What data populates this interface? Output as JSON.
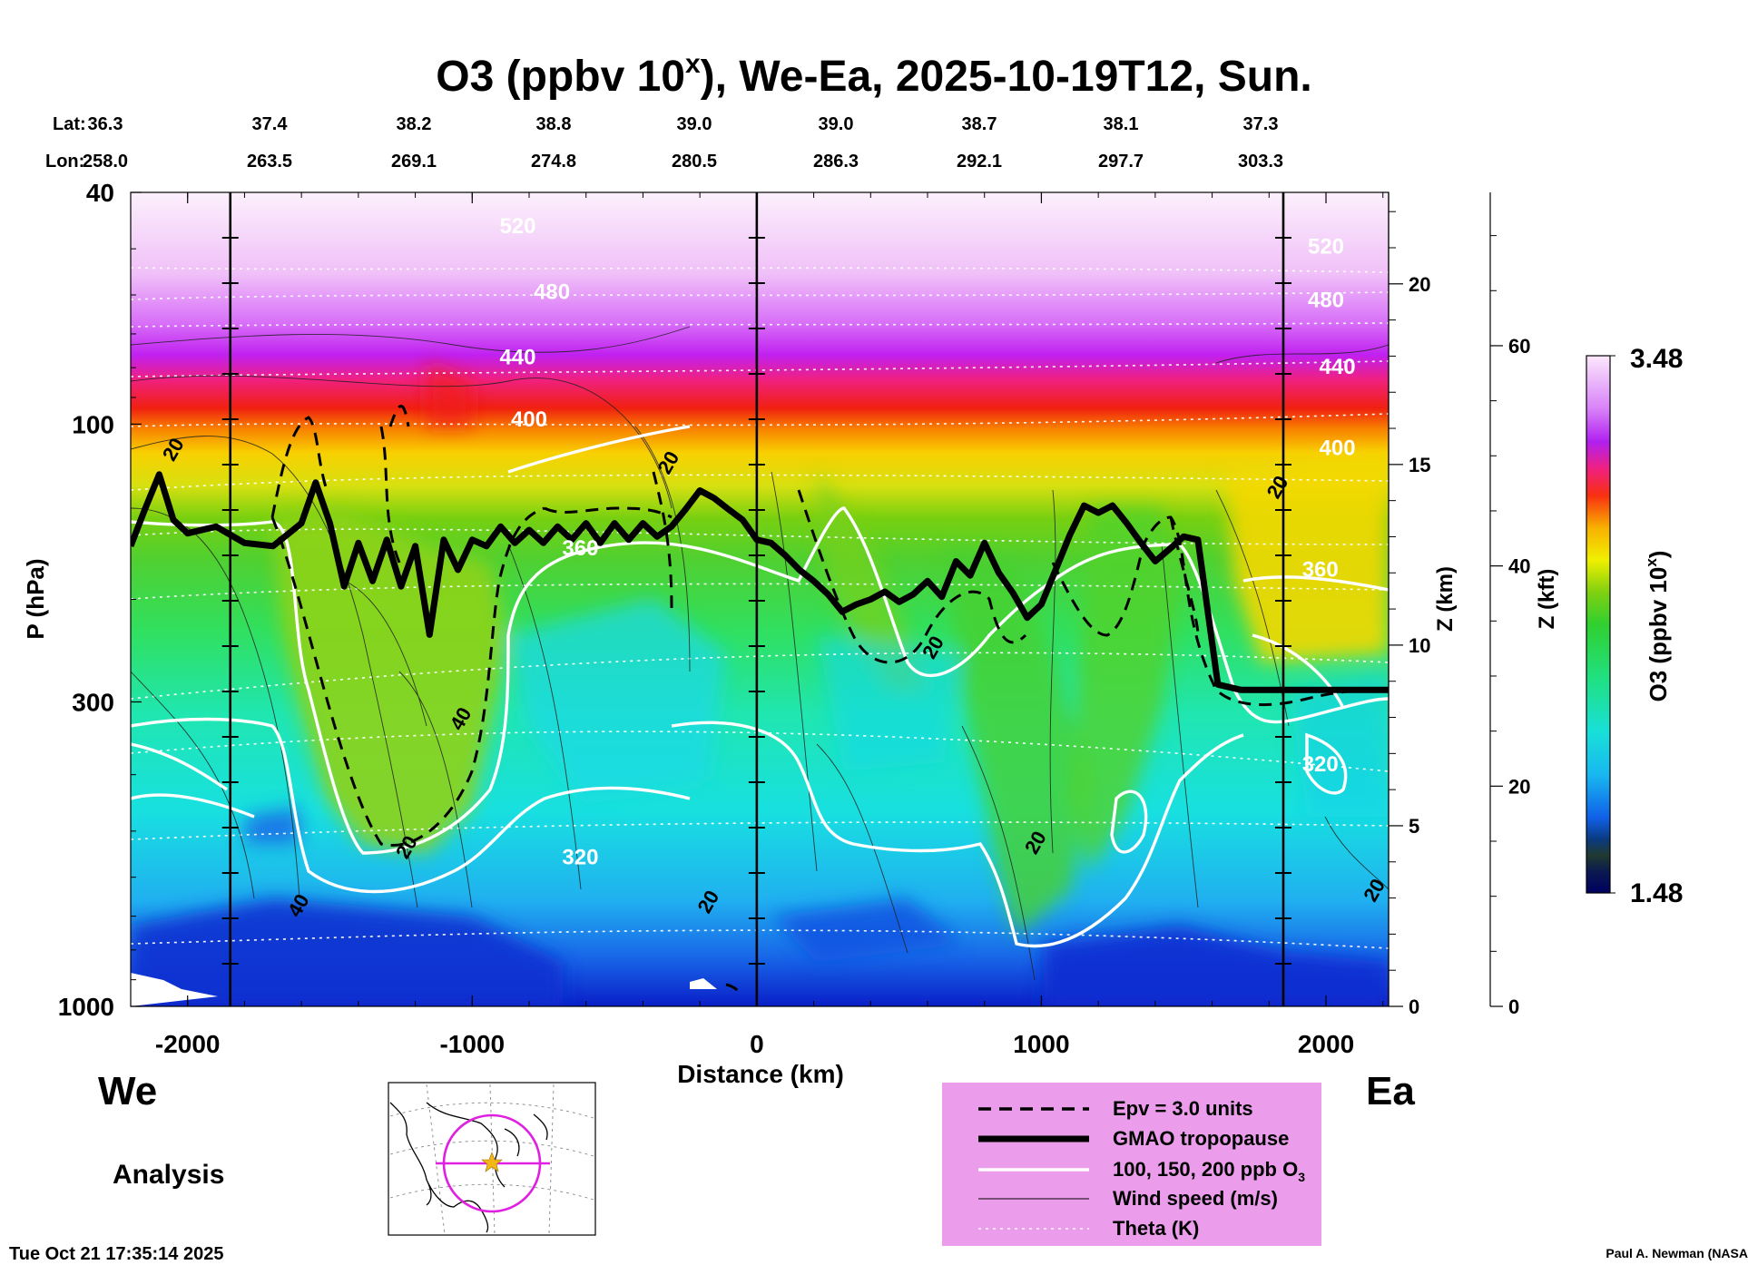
{
  "chart_data": {
    "type": "heatmap",
    "title_prefix": "O3 (ppbv 10",
    "title_sup": "x",
    "title_suffix": "), We-Ea, 2025-10-19T12, Sun.",
    "lat_label": "Lat:",
    "lon_label": "Lon:",
    "lat_values": [
      "36.3",
      "37.4",
      "38.2",
      "38.8",
      "39.0",
      "39.0",
      "38.7",
      "38.1",
      "37.3"
    ],
    "lon_values": [
      "258.0",
      "263.5",
      "269.1",
      "274.8",
      "280.5",
      "286.3",
      "292.1",
      "297.7",
      "303.3"
    ],
    "xlabel": "Distance (km)",
    "x_range": [
      -2200,
      2220
    ],
    "x_ticks": [
      "-2000",
      "-1000",
      "0",
      "1000",
      "2000"
    ],
    "x_tick_values": [
      -2000,
      -1000,
      0,
      1000,
      2000
    ],
    "ylabel": "P (hPa)",
    "y_range_hpa": [
      1000,
      40
    ],
    "y_ticks": [
      "40",
      "100",
      "300",
      "1000"
    ],
    "y_tick_values": [
      40,
      100,
      300,
      1000
    ],
    "z_km_label": "Z (km)",
    "z_km_ticks": [
      "0",
      "5",
      "10",
      "15",
      "20"
    ],
    "z_kft_label": "Z (kft)",
    "z_kft_ticks": [
      "0",
      "20",
      "40",
      "60"
    ],
    "colorbar_label": "O3 (ppbv 10",
    "colorbar_label_sup": "x",
    "colorbar_label_end": ")",
    "colorbar_range": [
      1.48,
      3.48
    ],
    "colorbar_max_label": "3.48",
    "colorbar_min_label": "1.48",
    "vertical_lines_km": [
      -1850,
      0,
      1850
    ],
    "theta_labels": [
      {
        "text": "520",
        "x": -840,
        "p": 47
      },
      {
        "text": "480",
        "x": -720,
        "p": 61
      },
      {
        "text": "440",
        "x": -840,
        "p": 79
      },
      {
        "text": "400",
        "x": -800,
        "p": 101
      },
      {
        "text": "360",
        "x": -620,
        "p": 168
      },
      {
        "text": "320",
        "x": -620,
        "p": 570
      },
      {
        "text": "520",
        "x": 2000,
        "p": 51
      },
      {
        "text": "480",
        "x": 2000,
        "p": 63
      },
      {
        "text": "440",
        "x": 2040,
        "p": 82
      },
      {
        "text": "400",
        "x": 2040,
        "p": 113
      },
      {
        "text": "360",
        "x": 1980,
        "p": 183
      },
      {
        "text": "320",
        "x": 1980,
        "p": 395
      }
    ],
    "wind_labels": [
      {
        "text": "20",
        "x": -2030,
        "p": 112
      },
      {
        "text": "20",
        "x": 1850,
        "p": 130
      },
      {
        "text": "20",
        "x": -290,
        "p": 118
      },
      {
        "text": "20",
        "x": -1210,
        "p": 540
      },
      {
        "text": "40",
        "x": -1020,
        "p": 325
      },
      {
        "text": "40",
        "x": -1590,
        "p": 680
      },
      {
        "text": "20",
        "x": 640,
        "p": 245
      },
      {
        "text": "20",
        "x": 1000,
        "p": 530
      },
      {
        "text": "20",
        "x": -150,
        "p": 670
      },
      {
        "text": "20",
        "x": 2190,
        "p": 640
      }
    ],
    "tropopause_km_p": [
      [
        -2200,
        162
      ],
      [
        -2150,
        140
      ],
      [
        -2100,
        122
      ],
      [
        -2050,
        146
      ],
      [
        -2000,
        154
      ],
      [
        -1900,
        150
      ],
      [
        -1800,
        160
      ],
      [
        -1700,
        162
      ],
      [
        -1600,
        148
      ],
      [
        -1550,
        126
      ],
      [
        -1500,
        148
      ],
      [
        -1450,
        190
      ],
      [
        -1400,
        160
      ],
      [
        -1350,
        186
      ],
      [
        -1300,
        158
      ],
      [
        -1250,
        190
      ],
      [
        -1200,
        162
      ],
      [
        -1150,
        230
      ],
      [
        -1100,
        158
      ],
      [
        -1050,
        178
      ],
      [
        -1000,
        158
      ],
      [
        -950,
        162
      ],
      [
        -900,
        150
      ],
      [
        -850,
        160
      ],
      [
        -800,
        152
      ],
      [
        -750,
        160
      ],
      [
        -700,
        150
      ],
      [
        -650,
        158
      ],
      [
        -600,
        148
      ],
      [
        -550,
        160
      ],
      [
        -500,
        148
      ],
      [
        -450,
        158
      ],
      [
        -400,
        148
      ],
      [
        -350,
        156
      ],
      [
        -300,
        150
      ],
      [
        -250,
        140
      ],
      [
        -200,
        130
      ],
      [
        -150,
        134
      ],
      [
        -100,
        140
      ],
      [
        -50,
        146
      ],
      [
        0,
        158
      ],
      [
        50,
        160
      ],
      [
        100,
        168
      ],
      [
        150,
        178
      ],
      [
        200,
        186
      ],
      [
        250,
        196
      ],
      [
        300,
        210
      ],
      [
        350,
        204
      ],
      [
        400,
        200
      ],
      [
        450,
        194
      ],
      [
        500,
        202
      ],
      [
        550,
        196
      ],
      [
        600,
        186
      ],
      [
        650,
        198
      ],
      [
        700,
        172
      ],
      [
        750,
        182
      ],
      [
        800,
        160
      ],
      [
        850,
        180
      ],
      [
        900,
        195
      ],
      [
        950,
        215
      ],
      [
        1000,
        204
      ],
      [
        1050,
        178
      ],
      [
        1100,
        155
      ],
      [
        1150,
        138
      ],
      [
        1200,
        142
      ],
      [
        1250,
        138
      ],
      [
        1300,
        148
      ],
      [
        1350,
        160
      ],
      [
        1400,
        172
      ],
      [
        1450,
        164
      ],
      [
        1500,
        156
      ],
      [
        1550,
        158
      ],
      [
        1620,
        280
      ],
      [
        1700,
        286
      ],
      [
        1850,
        286
      ],
      [
        2000,
        286
      ],
      [
        2220,
        286
      ]
    ],
    "legend": [
      {
        "style": "dashed",
        "label": "Epv = 3.0 units"
      },
      {
        "style": "thick",
        "label": "GMAO tropopause"
      },
      {
        "style": "white",
        "label": "100, 150, 200 ppb O",
        "sub": "3"
      },
      {
        "style": "thin",
        "label": "Wind speed (m/s)"
      },
      {
        "style": "dotted",
        "label": "Theta (K)"
      }
    ],
    "left_label": "We",
    "right_label": "Ea"
  },
  "analysis_label": "Analysis",
  "timestamp": "Tue Oct 21 17:35:14 2025",
  "credit": "Paul A. Newman (NASA",
  "colors": {
    "legend_bg": "#EB9DEB",
    "map_circle": "#E020E0",
    "map_star": "#F2B616"
  }
}
